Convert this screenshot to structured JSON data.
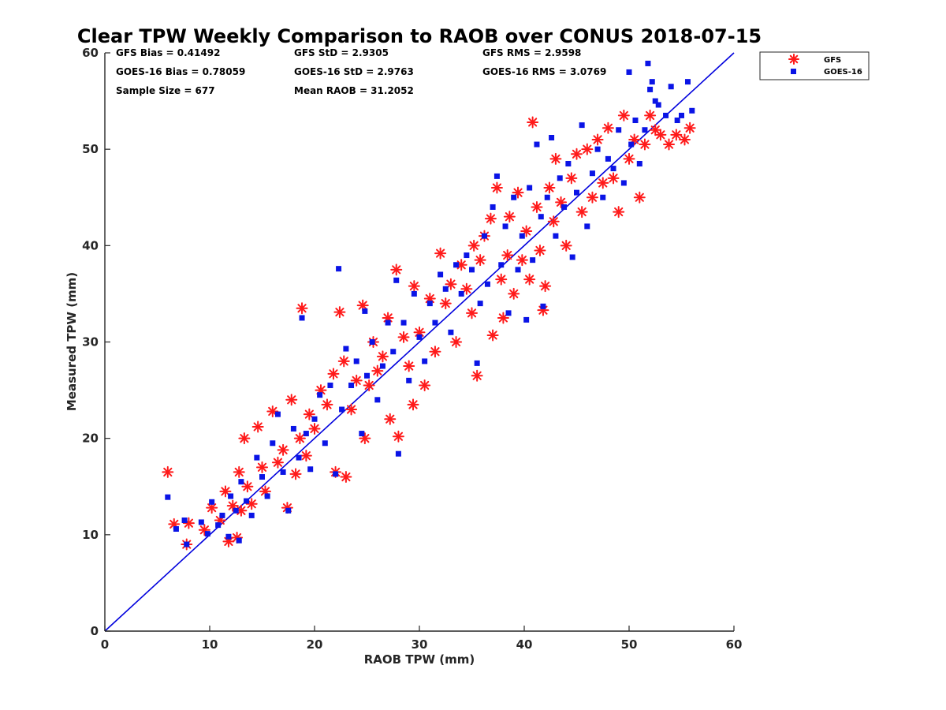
{
  "chart_data": {
    "type": "scatter",
    "title": "Clear TPW Weekly Comparison to RAOB over CONUS 2018-07-15",
    "xlabel": "RAOB TPW (mm)",
    "ylabel": "Measured TPW (mm)",
    "xlim": [
      0,
      60
    ],
    "ylim": [
      0,
      60
    ],
    "xticks": [
      "0",
      "10",
      "20",
      "30",
      "40",
      "50",
      "60"
    ],
    "yticks": [
      "0",
      "10",
      "20",
      "30",
      "40",
      "50",
      "60"
    ],
    "grid": false,
    "legend_position": "top-right, outside",
    "reference_line": {
      "name": "1:1 line",
      "x": [
        0,
        60
      ],
      "y": [
        0,
        60
      ],
      "color": "#0000dd"
    },
    "stats": {
      "gfs_bias": "GFS Bias = 0.41492",
      "goes_bias": "GOES-16 Bias = 0.78059",
      "sample_size": "Sample Size = 677",
      "gfs_std": "GFS StD = 2.9305",
      "goes_std": "GOES-16 StD = 2.9763",
      "mean_raob": "Mean RAOB = 31.2052",
      "gfs_rms": "GFS RMS = 2.9598",
      "goes_rms": "GOES-16 RMS = 3.0769"
    },
    "series": [
      {
        "name": "GFS",
        "marker": "asterisk",
        "color": "#ff1a1a",
        "points": [
          [
            6.0,
            16.5
          ],
          [
            6.6,
            11.1
          ],
          [
            7.8,
            9.0
          ],
          [
            8.0,
            11.2
          ],
          [
            9.5,
            10.5
          ],
          [
            10.2,
            12.8
          ],
          [
            11.0,
            11.5
          ],
          [
            11.5,
            14.5
          ],
          [
            11.8,
            9.3
          ],
          [
            12.2,
            13.0
          ],
          [
            12.6,
            9.7
          ],
          [
            12.8,
            16.5
          ],
          [
            13.0,
            12.5
          ],
          [
            13.3,
            20.0
          ],
          [
            13.6,
            15.0
          ],
          [
            14.0,
            13.2
          ],
          [
            14.6,
            21.2
          ],
          [
            15.0,
            17.0
          ],
          [
            15.3,
            14.5
          ],
          [
            16.0,
            22.8
          ],
          [
            16.5,
            17.5
          ],
          [
            17.0,
            18.8
          ],
          [
            17.4,
            12.8
          ],
          [
            17.8,
            24.0
          ],
          [
            18.2,
            16.3
          ],
          [
            18.8,
            33.5
          ],
          [
            18.6,
            20.0
          ],
          [
            19.2,
            18.2
          ],
          [
            19.5,
            22.5
          ],
          [
            20.0,
            21.0
          ],
          [
            20.6,
            25.0
          ],
          [
            21.2,
            23.5
          ],
          [
            21.8,
            26.7
          ],
          [
            22.4,
            33.1
          ],
          [
            22.0,
            16.5
          ],
          [
            23.0,
            16.0
          ],
          [
            22.8,
            28.0
          ],
          [
            23.5,
            23.0
          ],
          [
            24.0,
            26.0
          ],
          [
            24.6,
            33.8
          ],
          [
            24.8,
            20.0
          ],
          [
            25.2,
            25.5
          ],
          [
            25.6,
            30.0
          ],
          [
            26.0,
            27.0
          ],
          [
            26.5,
            28.5
          ],
          [
            27.0,
            32.5
          ],
          [
            27.2,
            22.0
          ],
          [
            27.8,
            37.5
          ],
          [
            28.0,
            20.2
          ],
          [
            28.5,
            30.5
          ],
          [
            29.0,
            27.5
          ],
          [
            29.4,
            23.5
          ],
          [
            29.5,
            35.8
          ],
          [
            30.0,
            31.0
          ],
          [
            30.5,
            25.5
          ],
          [
            31.0,
            34.5
          ],
          [
            31.5,
            29.0
          ],
          [
            32.0,
            39.2
          ],
          [
            32.5,
            34.0
          ],
          [
            33.0,
            36.0
          ],
          [
            33.5,
            30.0
          ],
          [
            34.0,
            38.0
          ],
          [
            34.5,
            35.5
          ],
          [
            35.0,
            33.0
          ],
          [
            35.2,
            40.0
          ],
          [
            35.5,
            26.5
          ],
          [
            35.8,
            38.5
          ],
          [
            36.2,
            41.0
          ],
          [
            36.8,
            42.8
          ],
          [
            37.0,
            30.7
          ],
          [
            37.4,
            46.0
          ],
          [
            37.8,
            36.5
          ],
          [
            38.0,
            32.5
          ],
          [
            38.4,
            39.0
          ],
          [
            38.6,
            43.0
          ],
          [
            39.0,
            35.0
          ],
          [
            39.4,
            45.5
          ],
          [
            39.8,
            38.5
          ],
          [
            40.2,
            41.5
          ],
          [
            40.5,
            36.5
          ],
          [
            40.8,
            52.8
          ],
          [
            41.2,
            44.0
          ],
          [
            41.5,
            39.5
          ],
          [
            41.8,
            33.3
          ],
          [
            42.0,
            35.8
          ],
          [
            42.4,
            46.0
          ],
          [
            42.8,
            42.5
          ],
          [
            43.0,
            49.0
          ],
          [
            43.5,
            44.5
          ],
          [
            44.0,
            40.0
          ],
          [
            44.5,
            47.0
          ],
          [
            45.0,
            49.5
          ],
          [
            45.5,
            43.5
          ],
          [
            46.0,
            50.0
          ],
          [
            46.5,
            45.0
          ],
          [
            47.0,
            51.0
          ],
          [
            47.5,
            46.5
          ],
          [
            48.0,
            52.2
          ],
          [
            48.5,
            47.0
          ],
          [
            49.0,
            43.5
          ],
          [
            49.5,
            53.5
          ],
          [
            50.0,
            49.0
          ],
          [
            50.5,
            51.0
          ],
          [
            51.0,
            45.0
          ],
          [
            51.5,
            50.5
          ],
          [
            52.0,
            53.5
          ],
          [
            52.5,
            52.0
          ],
          [
            53.0,
            51.5
          ],
          [
            53.8,
            50.5
          ],
          [
            54.5,
            51.5
          ],
          [
            55.3,
            51.0
          ],
          [
            55.8,
            52.2
          ]
        ]
      },
      {
        "name": "GOES-16",
        "marker": "square",
        "color": "#0a14e6",
        "points": [
          [
            6.0,
            13.9
          ],
          [
            6.8,
            10.6
          ],
          [
            7.6,
            11.5
          ],
          [
            7.8,
            9.0
          ],
          [
            9.2,
            11.3
          ],
          [
            9.8,
            10.1
          ],
          [
            10.2,
            13.4
          ],
          [
            10.8,
            11.0
          ],
          [
            11.2,
            12.0
          ],
          [
            11.8,
            9.8
          ],
          [
            12.0,
            14.0
          ],
          [
            12.5,
            12.5
          ],
          [
            12.8,
            9.4
          ],
          [
            13.0,
            15.5
          ],
          [
            13.5,
            13.5
          ],
          [
            14.0,
            12.0
          ],
          [
            14.5,
            18.0
          ],
          [
            15.0,
            16.0
          ],
          [
            15.5,
            14.0
          ],
          [
            16.0,
            19.5
          ],
          [
            16.5,
            22.5
          ],
          [
            17.0,
            16.5
          ],
          [
            17.5,
            12.5
          ],
          [
            18.0,
            21.0
          ],
          [
            18.5,
            18.0
          ],
          [
            18.8,
            32.5
          ],
          [
            19.2,
            20.5
          ],
          [
            19.6,
            16.8
          ],
          [
            20.0,
            22.0
          ],
          [
            20.5,
            24.5
          ],
          [
            21.0,
            19.5
          ],
          [
            21.5,
            25.5
          ],
          [
            22.0,
            16.3
          ],
          [
            22.3,
            37.6
          ],
          [
            22.6,
            23.0
          ],
          [
            23.0,
            29.3
          ],
          [
            23.5,
            25.5
          ],
          [
            24.0,
            28.0
          ],
          [
            24.5,
            20.5
          ],
          [
            24.8,
            33.2
          ],
          [
            25.0,
            26.5
          ],
          [
            25.5,
            30.0
          ],
          [
            26.0,
            24.0
          ],
          [
            26.5,
            27.5
          ],
          [
            27.0,
            32.0
          ],
          [
            27.5,
            29.0
          ],
          [
            27.8,
            36.4
          ],
          [
            28.0,
            18.4
          ],
          [
            28.5,
            32.0
          ],
          [
            29.0,
            26.0
          ],
          [
            29.5,
            35.0
          ],
          [
            30.0,
            30.5
          ],
          [
            30.5,
            28.0
          ],
          [
            31.0,
            34.0
          ],
          [
            31.5,
            32.0
          ],
          [
            32.0,
            37.0
          ],
          [
            32.5,
            35.5
          ],
          [
            33.0,
            31.0
          ],
          [
            33.5,
            38.0
          ],
          [
            34.0,
            35.0
          ],
          [
            34.5,
            39.0
          ],
          [
            35.0,
            37.5
          ],
          [
            35.5,
            27.8
          ],
          [
            35.8,
            34.0
          ],
          [
            36.2,
            41.0
          ],
          [
            36.5,
            36.0
          ],
          [
            37.0,
            44.0
          ],
          [
            37.4,
            47.2
          ],
          [
            37.8,
            38.0
          ],
          [
            38.2,
            42.0
          ],
          [
            38.5,
            33.0
          ],
          [
            39.0,
            45.0
          ],
          [
            39.4,
            37.5
          ],
          [
            39.8,
            41.0
          ],
          [
            40.2,
            32.3
          ],
          [
            40.5,
            46.0
          ],
          [
            40.8,
            38.5
          ],
          [
            41.2,
            50.5
          ],
          [
            41.6,
            43.0
          ],
          [
            41.8,
            33.7
          ],
          [
            42.2,
            45.0
          ],
          [
            42.6,
            51.2
          ],
          [
            43.0,
            41.0
          ],
          [
            43.4,
            47.0
          ],
          [
            43.8,
            44.0
          ],
          [
            44.2,
            48.5
          ],
          [
            44.6,
            38.8
          ],
          [
            45.0,
            45.5
          ],
          [
            45.5,
            52.5
          ],
          [
            46.0,
            42.0
          ],
          [
            46.5,
            47.5
          ],
          [
            47.0,
            50.0
          ],
          [
            47.5,
            45.0
          ],
          [
            48.0,
            49.0
          ],
          [
            48.5,
            48.0
          ],
          [
            49.0,
            52.0
          ],
          [
            49.5,
            46.5
          ],
          [
            50.0,
            58.0
          ],
          [
            50.2,
            50.5
          ],
          [
            50.6,
            53.0
          ],
          [
            51.0,
            48.5
          ],
          [
            51.5,
            52.0
          ],
          [
            51.8,
            58.9
          ],
          [
            52.0,
            56.2
          ],
          [
            52.2,
            57.0
          ],
          [
            52.5,
            55.0
          ],
          [
            52.8,
            54.6
          ],
          [
            53.5,
            53.5
          ],
          [
            54.0,
            56.5
          ],
          [
            54.6,
            53.0
          ],
          [
            55.0,
            53.5
          ],
          [
            55.6,
            57.0
          ],
          [
            56.0,
            54.0
          ]
        ]
      }
    ]
  }
}
